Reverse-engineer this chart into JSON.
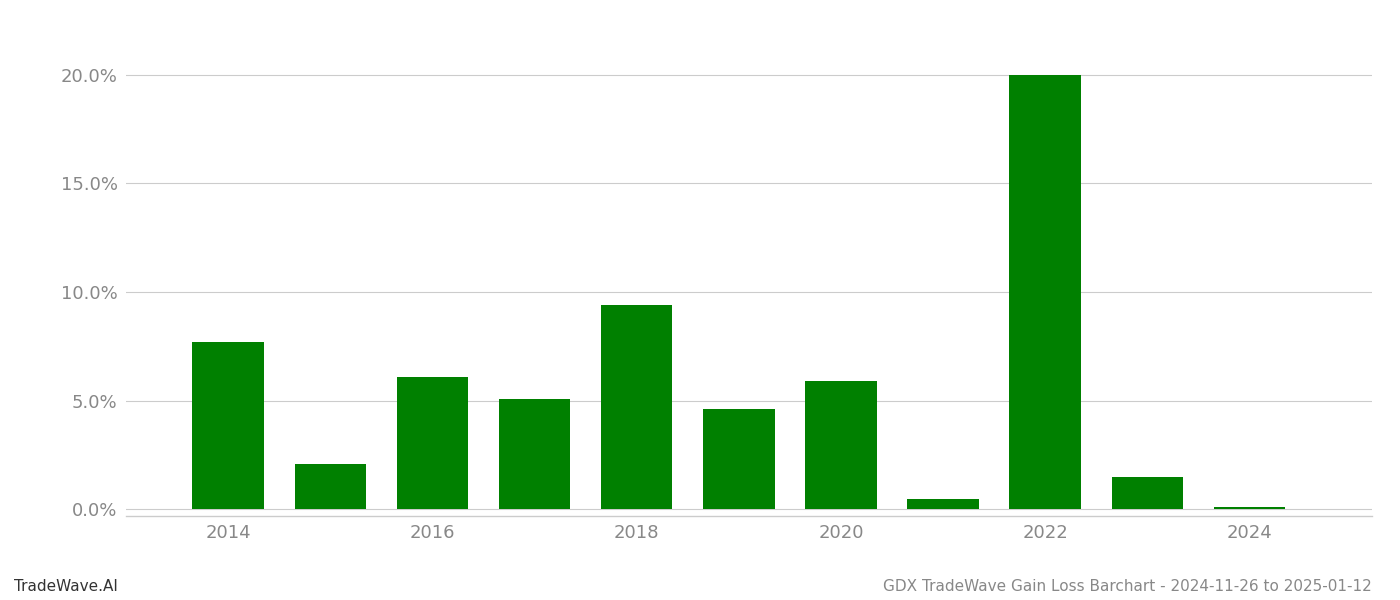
{
  "years": [
    2014,
    2015,
    2016,
    2017,
    2018,
    2019,
    2020,
    2021,
    2022,
    2023,
    2024
  ],
  "values": [
    0.077,
    0.021,
    0.061,
    0.051,
    0.094,
    0.046,
    0.059,
    0.005,
    0.2,
    0.015,
    0.001
  ],
  "bar_color": "#008000",
  "background_color": "#ffffff",
  "grid_color": "#cccccc",
  "axis_label_color": "#888888",
  "title_text": "GDX TradeWave Gain Loss Barchart - 2024-11-26 to 2025-01-12",
  "watermark_text": "TradeWave.AI",
  "ylim_min": -0.003,
  "ylim_max": 0.215,
  "yticks": [
    0.0,
    0.05,
    0.1,
    0.15,
    0.2
  ],
  "ytick_labels": [
    "0.0%",
    "5.0%",
    "10.0%",
    "15.0%",
    "20.0%"
  ],
  "xtick_labels": [
    "2014",
    "2016",
    "2018",
    "2020",
    "2022",
    "2024"
  ],
  "xtick_positions": [
    2014,
    2016,
    2018,
    2020,
    2022,
    2024
  ],
  "bar_width": 0.7,
  "title_fontsize": 11,
  "watermark_fontsize": 11,
  "tick_fontsize": 13
}
